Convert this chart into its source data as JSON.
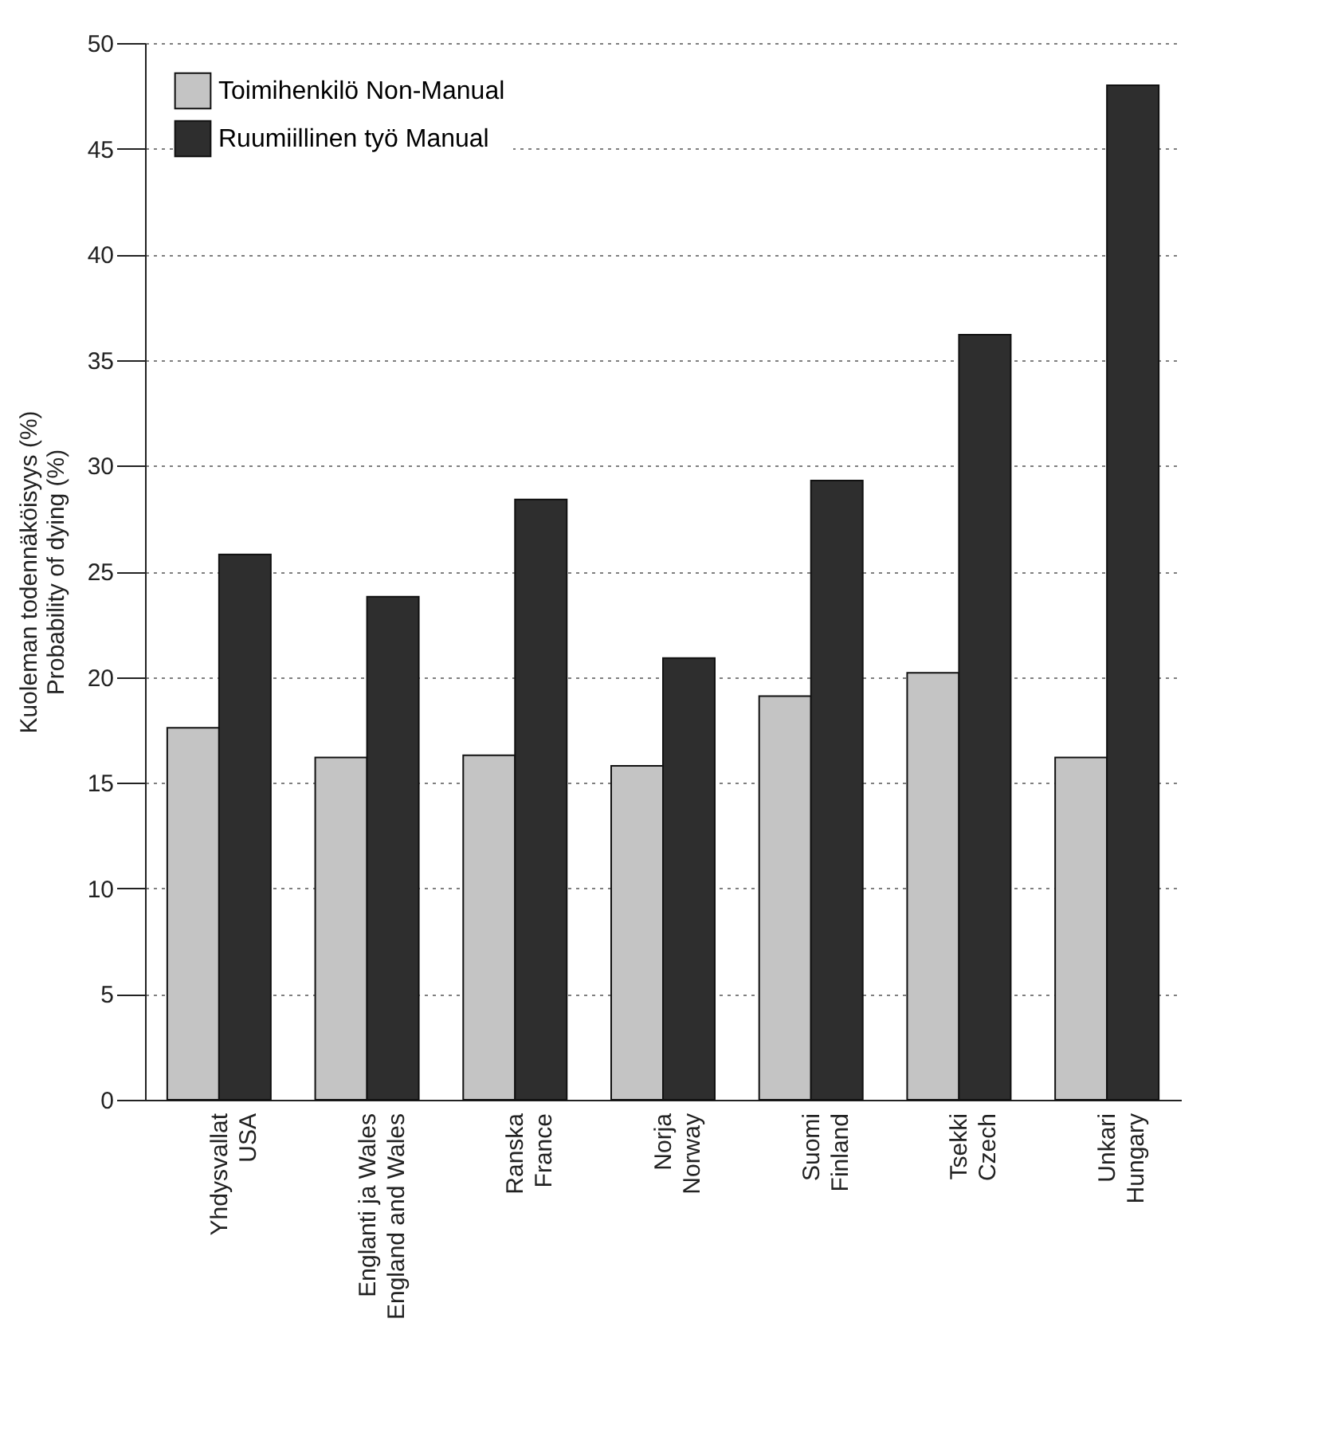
{
  "chart_data": {
    "type": "bar",
    "ylabel": "Kuoleman todennäköisyys (%)\nProbability of dying (%)",
    "categories": [
      "Yhdysvallat\nUSA",
      "Englanti ja Wales\nEngland and Wales",
      "Ranska\nFrance",
      "Norja\nNorway",
      "Suomi\nFinland",
      "Tsekki\nCzech",
      "Unkari\nHungary"
    ],
    "series": [
      {
        "name": "Toimihenkilö  Non-Manual",
        "color": "#c4c4c4",
        "values": [
          17.6,
          16.2,
          16.3,
          15.8,
          19.1,
          20.2,
          16.2
        ]
      },
      {
        "name": "Ruumiillinen työ  Manual",
        "color": "#2e2e2e",
        "values": [
          25.8,
          23.8,
          28.4,
          20.9,
          29.3,
          36.2,
          48
        ]
      }
    ],
    "ylim": [
      0,
      50
    ],
    "yticks": [
      0,
      5,
      10,
      15,
      20,
      25,
      30,
      35,
      40,
      45,
      50
    ],
    "grid": "y",
    "legend": "top left"
  }
}
